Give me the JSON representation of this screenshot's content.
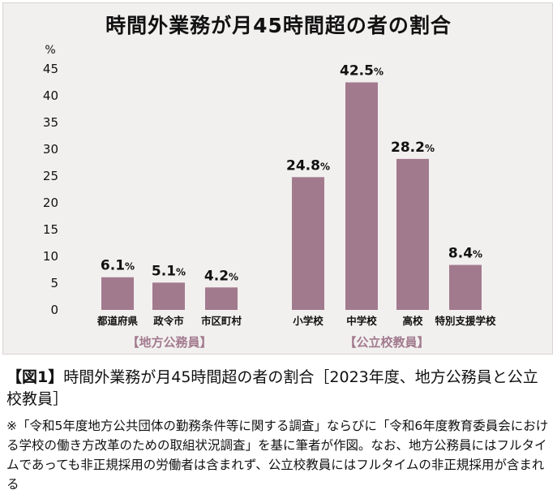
{
  "chart_data": {
    "type": "bar",
    "title": "時間外業務が月45時間超の者の割合",
    "ylabel": "%",
    "yticks": [
      0,
      5,
      10,
      15,
      20,
      25,
      30,
      35,
      40,
      45
    ],
    "ylim": [
      0,
      45
    ],
    "bar_color": "#a27a8e",
    "group_label_color": "#a27a8e",
    "groups": [
      {
        "label": "【地方公務員】",
        "categories": [
          "都道府県",
          "政令市",
          "市区町村"
        ],
        "values": [
          6.1,
          5.1,
          4.2
        ],
        "value_labels": [
          "6.1",
          "5.1",
          "4.2"
        ]
      },
      {
        "label": "【公立校教員】",
        "categories": [
          "小学校",
          "中学校",
          "高校",
          "特別支援学校"
        ],
        "values": [
          24.8,
          42.5,
          28.2,
          8.4
        ],
        "value_labels": [
          "24.8",
          "42.5",
          "28.2",
          "8.4"
        ]
      }
    ],
    "value_suffix": "%"
  },
  "caption": {
    "tag": "【図1】",
    "text": "時間外業務が月45時間超の者の割合［2023年度、地方公務員と公立校教員］"
  },
  "note": "※「令和5年度地方公共団体の勤務条件等に関する調査」ならびに「令和6年度教育委員会における学校の働き方改革のための取組状況調査」を基に筆者が作図。なお、地方公務員にはフルタイムであっても非正規採用の労働者は含まれず、公立校教員にはフルタイムの非正規採用が含まれる"
}
